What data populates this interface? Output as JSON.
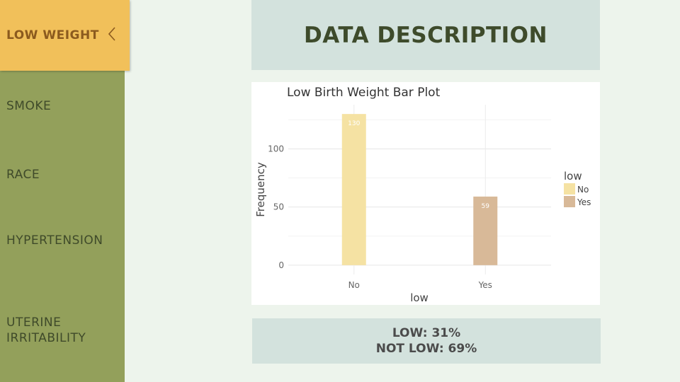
{
  "sidebar": {
    "items": [
      {
        "label": "LOW WEIGHT",
        "active": true
      },
      {
        "label": "SMOKE"
      },
      {
        "label": "RACE"
      },
      {
        "label": "HYPERTENSION"
      },
      {
        "label": "UTERINE"
      },
      {
        "label": "IRRITABILITY"
      }
    ]
  },
  "header": {
    "title": "DATA DESCRIPTION"
  },
  "stats": {
    "low": "LOW: 31%",
    "not_low": "NOT LOW: 69%"
  },
  "colors": {
    "accent": "#f1c05a",
    "sidebar": "#93a05b",
    "panel": "#d3e2dd"
  },
  "chart_data": {
    "type": "bar",
    "title": "Low Birth Weight Bar Plot",
    "xlabel": "low",
    "ylabel": "Frequency",
    "categories": [
      "No",
      "Yes"
    ],
    "values": [
      130,
      59
    ],
    "data_labels": [
      "130",
      "59"
    ],
    "yticks": [
      0,
      50,
      100
    ],
    "ylim": [
      -8,
      138
    ],
    "colors": [
      "#f5e2a3",
      "#d8b998"
    ],
    "grid": true,
    "legend": {
      "title": "low",
      "entries": [
        "No",
        "Yes"
      ],
      "position": "right"
    }
  }
}
